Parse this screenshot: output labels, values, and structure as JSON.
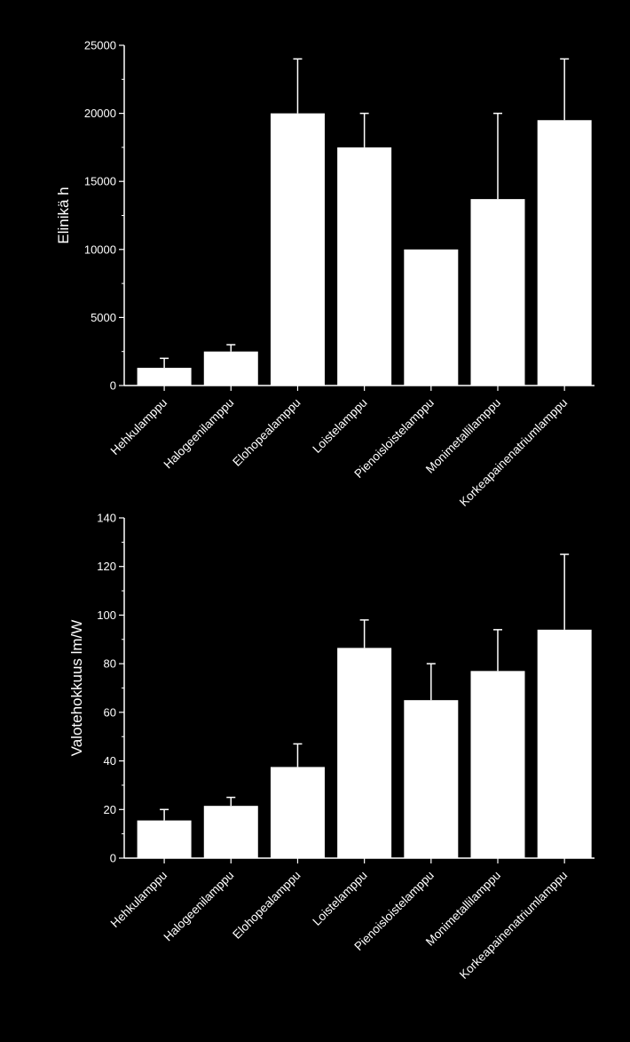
{
  "colors": {
    "background": "#000000",
    "foreground": "#ffffff"
  },
  "chart_data": [
    {
      "type": "bar",
      "title": "",
      "xlabel": "",
      "ylabel": "Elinikä h",
      "ylim": [
        0,
        25000
      ],
      "yticks": [
        0,
        5000,
        10000,
        15000,
        20000,
        25000
      ],
      "grid": false,
      "categories": [
        "Hehkulamppu",
        "Halogeenilamppu",
        "Elohopealamppu",
        "Loistelamppu",
        "Pienoisloistelamppu",
        "Monimetallilamppu",
        "Korkeapainenatriumlamppu"
      ],
      "values": [
        1300,
        2500,
        20000,
        17500,
        10000,
        13700,
        19500
      ],
      "error_upper": [
        2000,
        3000,
        24000,
        20000,
        10000,
        20000,
        24000
      ]
    },
    {
      "type": "bar",
      "title": "",
      "xlabel": "",
      "ylabel": "Valotehokkuus lm/W",
      "ylim": [
        0,
        140
      ],
      "yticks": [
        0,
        20,
        40,
        60,
        80,
        100,
        120,
        140
      ],
      "grid": false,
      "categories": [
        "Hehkulamppu",
        "Halogeenilamppu",
        "Elohopealamppu",
        "Loistelamppu",
        "Pienoisloistelamppu",
        "Monimetallilamppu",
        "Korkeapainenatriumlamppu"
      ],
      "values": [
        15.5,
        21.5,
        37.5,
        86.5,
        65,
        77,
        94
      ],
      "error_upper": [
        20,
        25,
        47,
        98,
        80,
        94,
        125
      ]
    }
  ]
}
